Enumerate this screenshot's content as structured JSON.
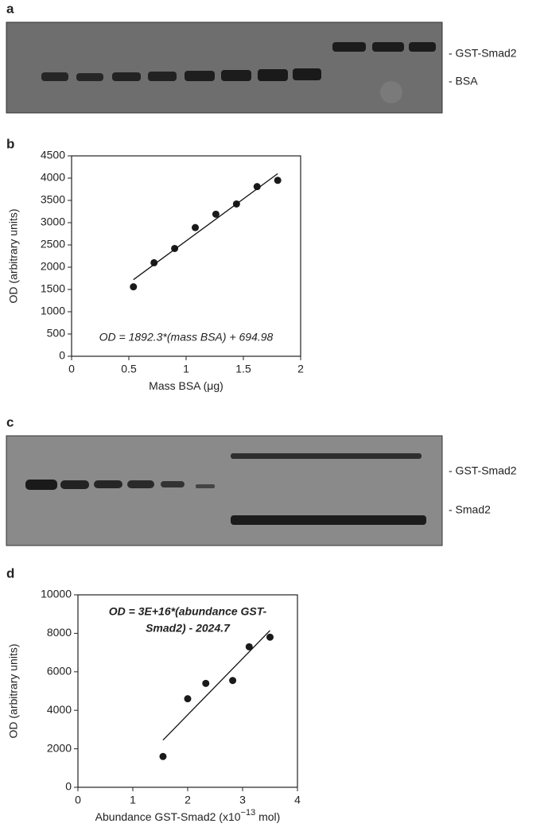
{
  "gels": [
    {
      "panel": "a",
      "band_labels": [
        "- GST-Smad2",
        "- BSA"
      ]
    },
    {
      "panel": "c",
      "band_labels": [
        "- GST-Smad2",
        "- Smad2"
      ]
    }
  ],
  "chart_data": [
    {
      "type": "scatter",
      "panel": "b",
      "x_label": [
        "Mass BSA (",
        "μ",
        "g)"
      ],
      "y_label": "OD (arbitrary units)",
      "x": [
        0.54,
        0.72,
        0.9,
        1.08,
        1.26,
        1.44,
        1.62,
        1.8
      ],
      "values": [
        1560,
        2100,
        2420,
        2890,
        3190,
        3420,
        3810,
        3950
      ],
      "fit_line": {
        "x": [
          0.54,
          1.8
        ],
        "y": [
          1720,
          4100
        ]
      },
      "annotation": [
        "OD = 1892.3*(mass BSA) + 694.98"
      ],
      "color": "#1a1a1a",
      "xlim": [
        0,
        2
      ],
      "xticks": [
        0,
        0.5,
        1,
        1.5,
        2
      ],
      "ylim": [
        0,
        4500
      ],
      "yticks": [
        0,
        500,
        1000,
        1500,
        2000,
        2500,
        3000,
        3500,
        4000,
        4500
      ]
    },
    {
      "type": "scatter",
      "panel": "d",
      "x_label": [
        "Abundance GST-Smad2 (x10",
        "−13",
        " mol)"
      ],
      "y_label": "OD (arbitrary units)",
      "x": [
        1.55,
        2.0,
        2.33,
        2.82,
        3.12,
        3.5
      ],
      "values": [
        1600,
        4600,
        5400,
        5550,
        7300,
        7800
      ],
      "fit_line": {
        "x": [
          1.55,
          3.5
        ],
        "y": [
          2450,
          8150
        ]
      },
      "annotation": [
        "OD = 3E+16*(abundance GST-",
        "Smad2) - 2024.7"
      ],
      "color": "#1a1a1a",
      "xlim": [
        0,
        4
      ],
      "xticks": [
        0,
        1,
        2,
        3,
        4
      ],
      "ylim": [
        0,
        10000
      ],
      "yticks": [
        0,
        2000,
        4000,
        6000,
        8000,
        10000
      ]
    }
  ]
}
